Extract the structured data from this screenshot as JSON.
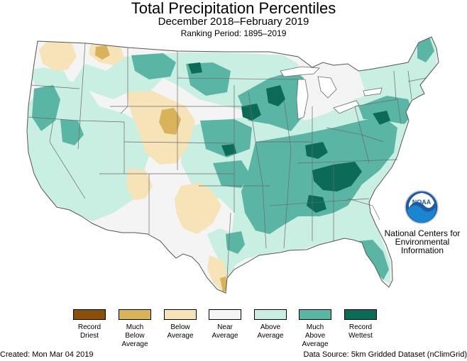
{
  "header": {
    "title": "Total Precipitation Percentiles",
    "subtitle": "December 2018–February 2019",
    "ranking": "Ranking Period: 1895–2019"
  },
  "colors": {
    "record_driest": "#8a4f0a",
    "much_below": "#d9b25c",
    "below": "#f7e3b8",
    "near": "#f4f4f4",
    "above": "#c9eee2",
    "much_above": "#5bb5a5",
    "record_wettest": "#0c6b57",
    "border": "#6a6a6a"
  },
  "legend": [
    {
      "lines": [
        "Record",
        "Driest"
      ],
      "color_key": "record_driest"
    },
    {
      "lines": [
        "Much",
        "Below",
        "Average"
      ],
      "color_key": "much_below"
    },
    {
      "lines": [
        "Below",
        "Average"
      ],
      "color_key": "below"
    },
    {
      "lines": [
        "Near",
        "Average"
      ],
      "color_key": "near"
    },
    {
      "lines": [
        "Above",
        "Average"
      ],
      "color_key": "above"
    },
    {
      "lines": [
        "Much",
        "Above",
        "Average"
      ],
      "color_key": "much_above"
    },
    {
      "lines": [
        "Record",
        "Wettest"
      ],
      "color_key": "record_wettest"
    }
  ],
  "logo": {
    "icon": "noaa-logo-icon",
    "logo_text": "NOAA",
    "name_lines": [
      "National Centers for",
      "Environmental",
      "Information"
    ]
  },
  "footer": {
    "created": "Created: Mon Mar 04 2019",
    "source": "Data Source: 5km Gridded Dataset (nClimGrid)"
  }
}
